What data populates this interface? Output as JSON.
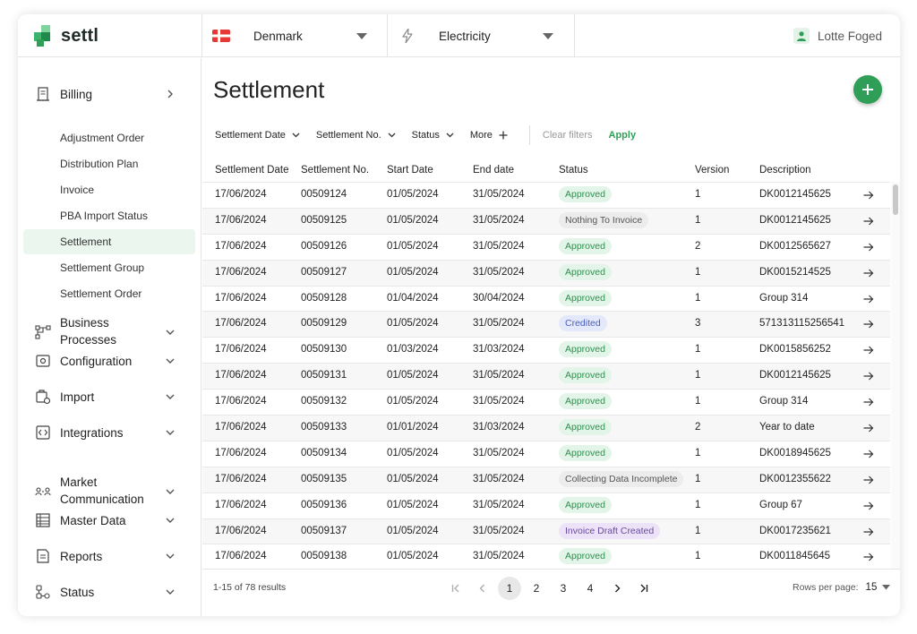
{
  "brand": {
    "name": "settl"
  },
  "topbar": {
    "country": "Denmark",
    "commodity": "Electricity",
    "user": "Lotte Foged"
  },
  "sidebar": {
    "billing": {
      "label": "Billing",
      "icon": "receipt-icon"
    },
    "billing_items": [
      {
        "label": "Adjustment Order"
      },
      {
        "label": "Distribution Plan"
      },
      {
        "label": "Invoice"
      },
      {
        "label": "PBA Import Status"
      },
      {
        "label": "Settlement",
        "active": true
      },
      {
        "label": "Settlement Group"
      },
      {
        "label": "Settlement Order"
      }
    ],
    "sections": [
      {
        "label1": "Business",
        "label2": "Processes",
        "icon": "workflow-icon"
      },
      {
        "label1": "Configuration",
        "label2": "",
        "icon": "settings-box-icon"
      },
      {
        "label1": "Import",
        "label2": "",
        "icon": "import-icon"
      },
      {
        "label1": "Integrations",
        "label2": "",
        "icon": "code-icon"
      },
      {
        "label1": "Market",
        "label2": "Communication",
        "icon": "people-icon"
      },
      {
        "label1": "Master Data",
        "label2": "",
        "icon": "table-icon"
      },
      {
        "label1": "Reports",
        "label2": "",
        "icon": "report-icon"
      },
      {
        "label1": "Status",
        "label2": "",
        "icon": "status-icon"
      }
    ]
  },
  "main": {
    "title": "Settlement",
    "filters": {
      "settlement_date": "Settlement Date",
      "settlement_no": "Settlement No.",
      "status": "Status",
      "more": "More",
      "clear": "Clear filters",
      "apply": "Apply"
    },
    "columns": {
      "settlement_date": "Settlement Date",
      "settlement_no": "Settlement No.",
      "start_date": "Start Date",
      "end_date": "End date",
      "status": "Status",
      "version": "Version",
      "description": "Description"
    },
    "rows": [
      {
        "settlement_date": "17/06/2024",
        "settlement_no": "00509124",
        "start_date": "01/05/2024",
        "end_date": "31/05/2024",
        "status": "Approved",
        "version": "1",
        "description": "DK0012145625"
      },
      {
        "settlement_date": "17/06/2024",
        "settlement_no": "00509125",
        "start_date": "01/05/2024",
        "end_date": "31/05/2024",
        "status": "Nothing To Invoice",
        "version": "1",
        "description": "DK0012145625"
      },
      {
        "settlement_date": "17/06/2024",
        "settlement_no": "00509126",
        "start_date": "01/05/2024",
        "end_date": "31/05/2024",
        "status": "Approved",
        "version": "2",
        "description": "DK0012565627"
      },
      {
        "settlement_date": "17/06/2024",
        "settlement_no": "00509127",
        "start_date": "01/05/2024",
        "end_date": "31/05/2024",
        "status": "Approved",
        "version": "1",
        "description": "DK0015214525"
      },
      {
        "settlement_date": "17/06/2024",
        "settlement_no": "00509128",
        "start_date": "01/04/2024",
        "end_date": "30/04/2024",
        "status": "Approved",
        "version": "1",
        "description": "Group 314"
      },
      {
        "settlement_date": "17/06/2024",
        "settlement_no": "00509129",
        "start_date": "01/05/2024",
        "end_date": "31/05/2024",
        "status": "Credited",
        "version": "3",
        "description": "571313115256541"
      },
      {
        "settlement_date": "17/06/2024",
        "settlement_no": "00509130",
        "start_date": "01/03/2024",
        "end_date": "31/03/2024",
        "status": "Approved",
        "version": "1",
        "description": "DK0015856252"
      },
      {
        "settlement_date": "17/06/2024",
        "settlement_no": "00509131",
        "start_date": "01/05/2024",
        "end_date": "31/05/2024",
        "status": "Approved",
        "version": "1",
        "description": "DK0012145625"
      },
      {
        "settlement_date": "17/06/2024",
        "settlement_no": "00509132",
        "start_date": "01/05/2024",
        "end_date": "31/05/2024",
        "status": "Approved",
        "version": "1",
        "description": "Group 314"
      },
      {
        "settlement_date": "17/06/2024",
        "settlement_no": "00509133",
        "start_date": "01/01/2024",
        "end_date": "31/03/2024",
        "status": "Approved",
        "version": "2",
        "description": "Year to date"
      },
      {
        "settlement_date": "17/06/2024",
        "settlement_no": "00509134",
        "start_date": "01/05/2024",
        "end_date": "31/05/2024",
        "status": "Approved",
        "version": "1",
        "description": "DK0018945625"
      },
      {
        "settlement_date": "17/06/2024",
        "settlement_no": "00509135",
        "start_date": "01/05/2024",
        "end_date": "31/05/2024",
        "status": "Collecting Data Incomplete",
        "version": "1",
        "description": "DK0012355622"
      },
      {
        "settlement_date": "17/06/2024",
        "settlement_no": "00509136",
        "start_date": "01/05/2024",
        "end_date": "31/05/2024",
        "status": "Approved",
        "version": "1",
        "description": "Group 67"
      },
      {
        "settlement_date": "17/06/2024",
        "settlement_no": "00509137",
        "start_date": "01/05/2024",
        "end_date": "31/05/2024",
        "status": "Invoice Draft Created",
        "version": "1",
        "description": "DK0017235621"
      },
      {
        "settlement_date": "17/06/2024",
        "settlement_no": "00509138",
        "start_date": "01/05/2024",
        "end_date": "31/05/2024",
        "status": "Approved",
        "version": "1",
        "description": "DK0011845645"
      }
    ],
    "status_colors": {
      "Approved": {
        "bg": "#e2f5e8",
        "fg": "#2f8f4e"
      },
      "Nothing To Invoice": {
        "bg": "#ececec",
        "fg": "#555555"
      },
      "Collecting Data Incomplete": {
        "bg": "#ececec",
        "fg": "#555555"
      },
      "Credited": {
        "bg": "#e3e8fb",
        "fg": "#4a5fc0"
      },
      "Invoice Draft Created": {
        "bg": "#ece3f8",
        "fg": "#6a4aa0"
      }
    },
    "footer": {
      "results": "1-15 of 78 results",
      "pages": [
        "1",
        "2",
        "3",
        "4"
      ],
      "current_page": "1",
      "rows_per_page_label": "Rows per page:",
      "rows_per_page": "15"
    }
  },
  "colors": {
    "accent": "#2f9e57",
    "brand_green": "#3cb46e"
  }
}
